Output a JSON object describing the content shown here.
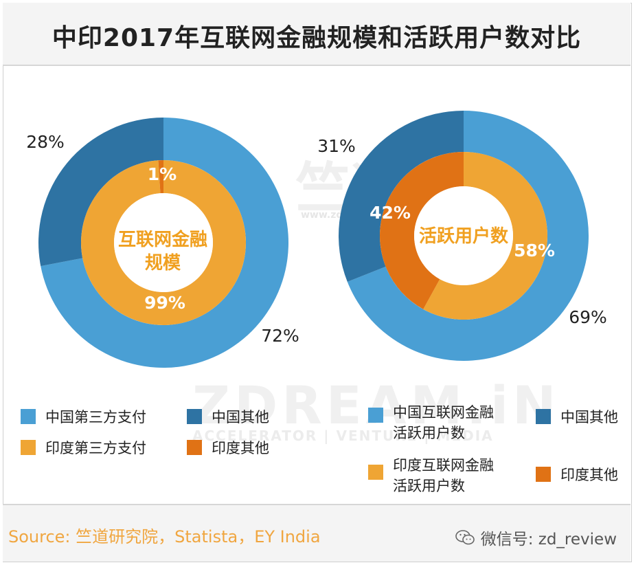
{
  "title": "中印2017年互联网金融规模和活跃用户数对比",
  "watermark": {
    "brand_cn": "竺道",
    "url": "www.zdream.in",
    "brand_en": "ZDREAM.iN",
    "tagline": "ACCELERATOR | VENTURE | MEDIA"
  },
  "colors": {
    "china_payment": "#4a9fd4",
    "china_other": "#2e73a3",
    "india_payment": "#efa534",
    "india_other": "#e07215"
  },
  "chart_data": [
    {
      "type": "pie",
      "variant": "nested-donut",
      "center_label": [
        "互联网金融",
        "规模"
      ],
      "outer": {
        "name": "中国",
        "series": [
          {
            "name": "中国第三方支付",
            "value": 72,
            "label": "72%"
          },
          {
            "name": "中国其他",
            "value": 28,
            "label": "28%"
          }
        ]
      },
      "inner": {
        "name": "印度",
        "series": [
          {
            "name": "印度第三方支付",
            "value": 99,
            "label": "99%"
          },
          {
            "name": "印度其他",
            "value": 1,
            "label": "1%"
          }
        ]
      }
    },
    {
      "type": "pie",
      "variant": "nested-donut",
      "center_label": [
        "活跃用户数"
      ],
      "outer": {
        "name": "中国",
        "series": [
          {
            "name": "中国互联网金融活跃用户数",
            "value": 69,
            "label": "69%"
          },
          {
            "name": "中国其他",
            "value": 31,
            "label": "31%"
          }
        ]
      },
      "inner": {
        "name": "印度",
        "series": [
          {
            "name": "印度互联网金融活跃用户数",
            "value": 58,
            "label": "58%"
          },
          {
            "name": "印度其他",
            "value": 42,
            "label": "42%"
          }
        ]
      }
    }
  ],
  "legend_left": [
    {
      "label": "中国第三方支付",
      "color_key": "china_payment"
    },
    {
      "label": "中国其他",
      "color_key": "china_other"
    },
    {
      "label": "印度第三方支付",
      "color_key": "india_payment"
    },
    {
      "label": "印度其他",
      "color_key": "india_other"
    }
  ],
  "legend_right": [
    {
      "label": "中国互联网金融\n活跃用户数",
      "color_key": "china_payment"
    },
    {
      "label": "中国其他",
      "color_key": "china_other"
    },
    {
      "label": "印度互联网金融\n活跃用户数",
      "color_key": "india_payment"
    },
    {
      "label": "印度其他",
      "color_key": "india_other"
    }
  ],
  "footer": {
    "source": "Source: 竺道研究院，Statista，EY India",
    "wechat": "微信号: zd_review"
  }
}
